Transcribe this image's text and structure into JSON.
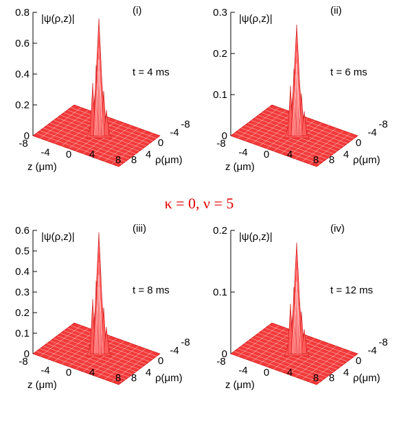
{
  "figure_title": "κ = 0, ν = 5",
  "chart_data": [
    {
      "type": "surface",
      "panel_label": "(i)",
      "zlabel": "|ψ(ρ,z)|",
      "annotation": "t = 4 ms",
      "xlabel": "z (μm)",
      "ylabel": "ρ(μm)",
      "zlim": [
        0,
        0.8
      ],
      "ztick_labels": [
        "0",
        "0.2",
        "0.4",
        "0.6",
        "0.8"
      ],
      "xtick_labels": [
        "-8",
        "-4",
        "0",
        "4",
        "8"
      ],
      "ytick_labels": [
        "8",
        "4",
        "0",
        "-4",
        "-8"
      ],
      "peak_value": 0.76,
      "color": "#e00000"
    },
    {
      "type": "surface",
      "panel_label": "(ii)",
      "zlabel": "|ψ(ρ,z)|",
      "annotation": "t = 6 ms",
      "xlabel": "z (μm)",
      "ylabel": "ρ(μm)",
      "zlim": [
        0,
        0.3
      ],
      "ztick_labels": [
        "0",
        "0.1",
        "0.2",
        "0.3"
      ],
      "xtick_labels": [
        "-8",
        "-4",
        "0",
        "4",
        "8"
      ],
      "ytick_labels": [
        "8",
        "4",
        "0",
        "-4",
        "-8"
      ],
      "peak_value": 0.27,
      "color": "#e00000"
    },
    {
      "type": "surface",
      "panel_label": "(iii)",
      "zlabel": "|ψ(ρ,z)|",
      "annotation": "t = 8 ms",
      "xlabel": "z (μm)",
      "ylabel": "ρ(μm)",
      "zlim": [
        0,
        0.6
      ],
      "ztick_labels": [
        "0",
        "0.1",
        "0.2",
        "0.3",
        "0.4",
        "0.5",
        "0.6"
      ],
      "xtick_labels": [
        "-8",
        "-4",
        "0",
        "4",
        "8"
      ],
      "ytick_labels": [
        "8",
        "4",
        "0",
        "-4",
        "-8"
      ],
      "peak_value": 0.59,
      "color": "#e00000"
    },
    {
      "type": "surface",
      "panel_label": "(iv)",
      "zlabel": "|ψ(ρ,z)|",
      "annotation": "t = 12 ms",
      "xlabel": "z (μm)",
      "ylabel": "ρ(μm)",
      "zlim": [
        0,
        0.2
      ],
      "ztick_labels": [
        "0",
        "0.1",
        "0.2"
      ],
      "xtick_labels": [
        "-8",
        "-4",
        "0",
        "4",
        "8"
      ],
      "ytick_labels": [
        "8",
        "4",
        "0",
        "-4",
        "-8"
      ],
      "peak_value": 0.18,
      "color": "#e00000"
    }
  ]
}
